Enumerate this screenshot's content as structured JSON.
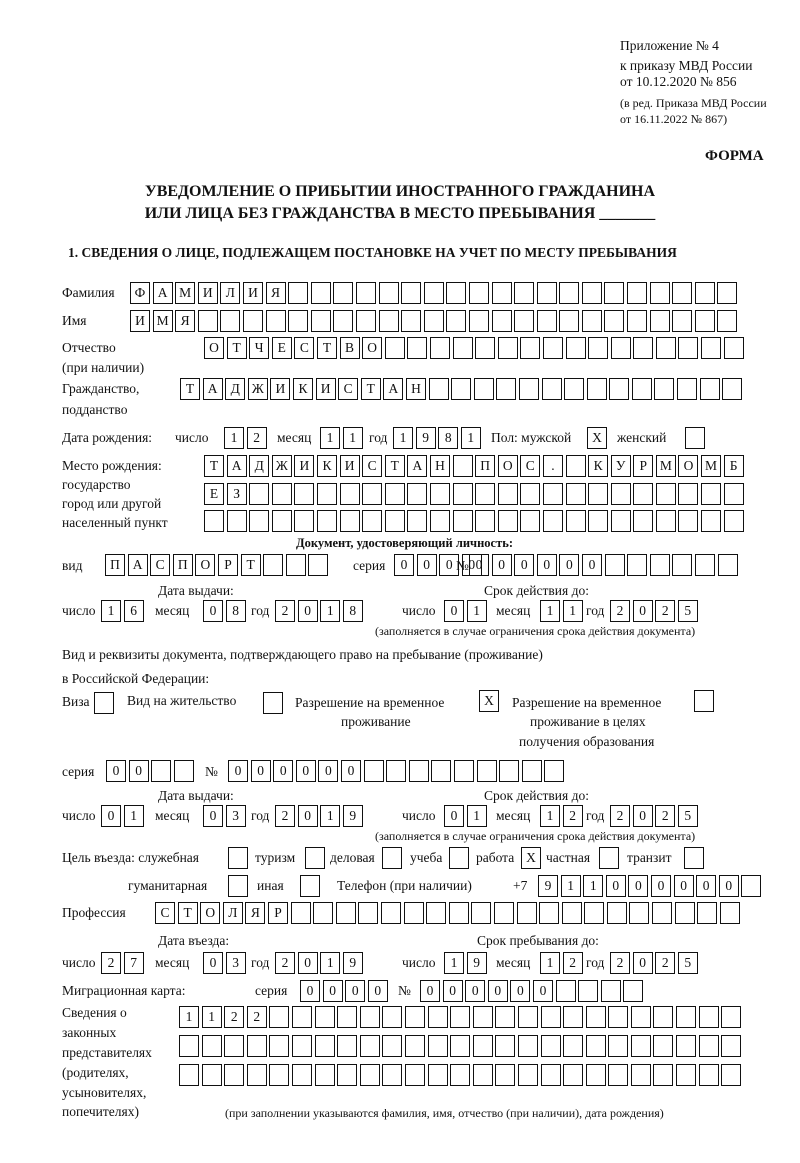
{
  "header": {
    "appendix": "Приложение № 4",
    "order": "к приказу МВД России",
    "date": "от 10.12.2020 № 856",
    "edition1": "(в ред. Приказа МВД России",
    "edition2": "от 16.11.2022 № 867)",
    "form": "ФОРМА",
    "title1": "УВЕДОМЛЕНИЕ О ПРИБЫТИИ ИНОСТРАННОГО ГРАЖДАНИНА",
    "title2": "ИЛИ ЛИЦА БЕЗ ГРАЖДАНСТВА В МЕСТО ПРЕБЫВАНИЯ _______",
    "section1": "1. СВЕДЕНИЯ О ЛИЦЕ, ПОДЛЕЖАЩЕМ ПОСТАНОВКЕ НА УЧЕТ ПО МЕСТУ ПРЕБЫВАНИЯ"
  },
  "labels": {
    "surname": "Фамилия",
    "name": "Имя",
    "patronymic": "Отчество",
    "patronymic2": "(при наличии)",
    "citizenship": "Гражданство,",
    "citizenship2": "подданство",
    "birth_date": "Дата рождения:",
    "day": "число",
    "month": "месяц",
    "year": "год",
    "sex": "Пол: мужской",
    "female": "женский",
    "birth_place": "Место рождения:",
    "bp2": "государство",
    "bp3": "город или другой",
    "bp4": "населенный пункт",
    "id_doc": "Документ, удостоверяющий личность:",
    "kind": "вид",
    "series": "серия",
    "number": "№",
    "issue_date": "Дата выдачи:",
    "valid_until": "Срок действия до:",
    "validity_note": "(заполняется в случае ограничения срока действия документа)",
    "right_doc1": "Вид и реквизиты документа, подтверждающего право на пребывание (проживание)",
    "right_doc2": "в Российской Федерации:",
    "visa": "Виза",
    "residence": "Вид на жительство",
    "temp1": "Разрешение на временное",
    "temp2": "проживание",
    "edu1": "Разрешение на временное",
    "edu2": "проживание в целях",
    "edu3": "получения образования",
    "purpose": "Цель въезда: служебная",
    "tourism": "туризм",
    "business": "деловая",
    "study": "учеба",
    "work": "работа",
    "private": "частная",
    "transit": "транзит",
    "humanitarian": "гуманитарная",
    "other": "иная",
    "phone": "Телефон (при наличии)",
    "phone_prefix": "+7",
    "profession": "Профессия",
    "entry_date": "Дата въезда:",
    "stay_until": "Срок пребывания до:",
    "migration_card": "Миграционная карта:",
    "reps1": "Сведения о",
    "reps2": "законных",
    "reps3": "представителях",
    "reps4": "(родителях,",
    "reps5": "усыновителях,",
    "reps6": "попечителях)",
    "reps_note": "(при заполнении указываются фамилия, имя, отчество (при наличии), дата рождения)"
  },
  "fields": {
    "surname": [
      "Ф",
      "А",
      "М",
      "И",
      "Л",
      "И",
      "Я",
      "",
      "",
      "",
      "",
      "",
      "",
      "",
      "",
      "",
      "",
      "",
      "",
      "",
      "",
      "",
      "",
      "",
      "",
      "",
      ""
    ],
    "name": [
      "И",
      "М",
      "Я",
      "",
      "",
      "",
      "",
      "",
      "",
      "",
      "",
      "",
      "",
      "",
      "",
      "",
      "",
      "",
      "",
      "",
      "",
      "",
      "",
      "",
      "",
      "",
      ""
    ],
    "patronymic": [
      "О",
      "Т",
      "Ч",
      "Е",
      "С",
      "Т",
      "В",
      "О",
      "",
      "",
      "",
      "",
      "",
      "",
      "",
      "",
      "",
      "",
      "",
      "",
      "",
      "",
      "",
      ""
    ],
    "citizenship": [
      "Т",
      "А",
      "Д",
      "Ж",
      "И",
      "К",
      "И",
      "С",
      "Т",
      "А",
      "Н",
      "",
      "",
      "",
      "",
      "",
      "",
      "",
      "",
      "",
      "",
      "",
      "",
      "",
      ""
    ],
    "birth_day": [
      "1",
      "2"
    ],
    "birth_month": [
      "1",
      "1"
    ],
    "birth_year": [
      "1",
      "9",
      "8",
      "1"
    ],
    "sex_male": [
      "X"
    ],
    "sex_female": [
      ""
    ],
    "birth_place_1": [
      "Т",
      "А",
      "Д",
      "Ж",
      "И",
      "К",
      "И",
      "С",
      "Т",
      "А",
      "Н",
      "",
      "П",
      "О",
      "С",
      ".",
      "",
      "К",
      "У",
      "Р",
      "М",
      "О",
      "М",
      "Б"
    ],
    "birth_place_2": [
      "Е",
      "З",
      "",
      "",
      "",
      "",
      "",
      "",
      "",
      "",
      "",
      "",
      "",
      "",
      "",
      "",
      "",
      "",
      "",
      "",
      "",
      "",
      "",
      ""
    ],
    "birth_place_3": [
      "",
      "",
      "",
      "",
      "",
      "",
      "",
      "",
      "",
      "",
      "",
      "",
      "",
      "",
      "",
      "",
      "",
      "",
      "",
      "",
      "",
      "",
      "",
      ""
    ],
    "id_kind": [
      "П",
      "А",
      "С",
      "П",
      "О",
      "Р",
      "Т",
      "",
      "",
      ""
    ],
    "id_series": [
      "0",
      "0",
      "0",
      "0"
    ],
    "id_number": [
      "0",
      "0",
      "0",
      "0",
      "0",
      "0",
      "",
      "",
      "",
      "",
      "",
      ""
    ],
    "id_issue_day": [
      "1",
      "6"
    ],
    "id_issue_month": [
      "0",
      "8"
    ],
    "id_issue_year": [
      "2",
      "0",
      "1",
      "8"
    ],
    "id_valid_day": [
      "0",
      "1"
    ],
    "id_valid_month": [
      "1",
      "1"
    ],
    "id_valid_year": [
      "2",
      "0",
      "2",
      "5"
    ],
    "visa": [
      ""
    ],
    "residence": [
      ""
    ],
    "temp_residence": [
      "X"
    ],
    "edu_residence": [
      ""
    ],
    "rd_series": [
      "0",
      "0",
      "",
      ""
    ],
    "rd_number": [
      "0",
      "0",
      "0",
      "0",
      "0",
      "0",
      "",
      "",
      "",
      "",
      "",
      "",
      "",
      "",
      ""
    ],
    "rd_issue_day": [
      "0",
      "1"
    ],
    "rd_issue_month": [
      "0",
      "3"
    ],
    "rd_issue_year": [
      "2",
      "0",
      "1",
      "9"
    ],
    "rd_valid_day": [
      "0",
      "1"
    ],
    "rd_valid_month": [
      "1",
      "2"
    ],
    "rd_valid_year": [
      "2",
      "0",
      "2",
      "5"
    ],
    "p_service": [
      ""
    ],
    "p_tourism": [
      ""
    ],
    "p_business": [
      ""
    ],
    "p_study": [
      ""
    ],
    "p_work": [
      "X"
    ],
    "p_private": [
      ""
    ],
    "p_transit": [
      ""
    ],
    "p_humanitarian": [
      ""
    ],
    "p_other": [
      ""
    ],
    "phone": [
      "9",
      "1",
      "1",
      "0",
      "0",
      "0",
      "0",
      "0",
      "0",
      ""
    ],
    "profession": [
      "С",
      "Т",
      "О",
      "Л",
      "Я",
      "Р",
      "",
      "",
      "",
      "",
      "",
      "",
      "",
      "",
      "",
      "",
      "",
      "",
      "",
      "",
      "",
      "",
      "",
      "",
      "",
      ""
    ],
    "entry_day": [
      "2",
      "7"
    ],
    "entry_month": [
      "0",
      "3"
    ],
    "entry_year": [
      "2",
      "0",
      "1",
      "9"
    ],
    "stay_day": [
      "1",
      "9"
    ],
    "stay_month": [
      "1",
      "2"
    ],
    "stay_year": [
      "2",
      "0",
      "2",
      "5"
    ],
    "mc_series": [
      "0",
      "0",
      "0",
      "0"
    ],
    "mc_number": [
      "0",
      "0",
      "0",
      "0",
      "0",
      "0",
      "",
      "",
      "",
      ""
    ],
    "reps_1": [
      "1",
      "1",
      "2",
      "2",
      "",
      "",
      "",
      "",
      "",
      "",
      "",
      "",
      "",
      "",
      "",
      "",
      "",
      "",
      "",
      "",
      "",
      "",
      "",
      "",
      ""
    ],
    "reps_2": [
      "",
      "",
      "",
      "",
      "",
      "",
      "",
      "",
      "",
      "",
      "",
      "",
      "",
      "",
      "",
      "",
      "",
      "",
      "",
      "",
      "",
      "",
      "",
      "",
      ""
    ],
    "reps_3": [
      "",
      "",
      "",
      "",
      "",
      "",
      "",
      "",
      "",
      "",
      "",
      "",
      "",
      "",
      "",
      "",
      "",
      "",
      "",
      "",
      "",
      "",
      "",
      "",
      ""
    ]
  }
}
